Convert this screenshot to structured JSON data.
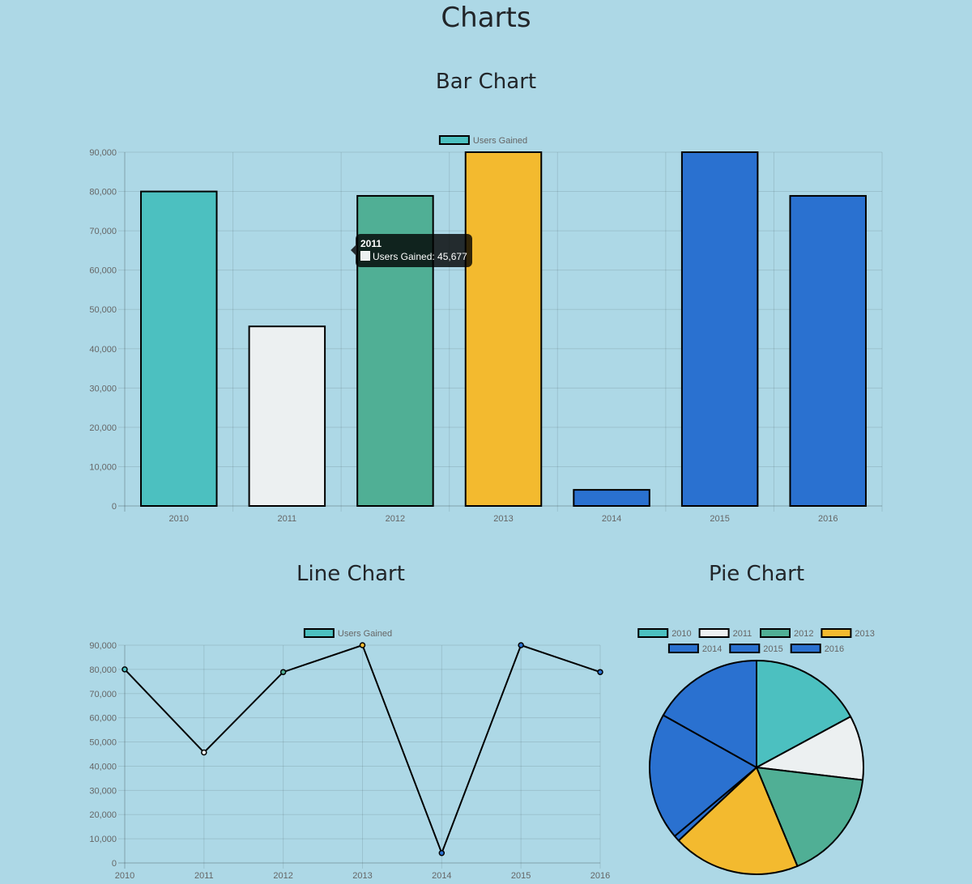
{
  "page": {
    "title": "Charts"
  },
  "sections": {
    "bar_title": "Bar Chart",
    "line_title": "Line Chart",
    "pie_title": "Pie Chart"
  },
  "tooltip": {
    "title": "2011",
    "label": "Users Gained: 45,677"
  },
  "colors": {
    "background": "#add8e6",
    "grid": "rgba(0,0,0,0.1)",
    "tick_text": "#666666",
    "border": "#000000"
  },
  "chart_data": [
    {
      "id": "bar",
      "type": "bar",
      "title": "Bar Chart",
      "legend": [
        "Users Gained"
      ],
      "legend_position": "top",
      "categories": [
        "2010",
        "2011",
        "2012",
        "2013",
        "2014",
        "2015",
        "2016"
      ],
      "series": [
        {
          "name": "Users Gained",
          "values": [
            80000,
            45677,
            78888,
            90000,
            4096,
            90000,
            78888
          ],
          "colors": [
            "#4cc0c0",
            "#ecf0f1",
            "#50af95",
            "#f3ba2f",
            "#2a71d0",
            "#2a71d0",
            "#2a71d0"
          ]
        }
      ],
      "xlabel": "",
      "ylabel": "",
      "ylim": [
        0,
        90000
      ],
      "yticks": [
        "0",
        "10,000",
        "20,000",
        "30,000",
        "40,000",
        "50,000",
        "60,000",
        "70,000",
        "80,000",
        "90,000"
      ],
      "grid": true
    },
    {
      "id": "line",
      "type": "line",
      "title": "Line Chart",
      "legend": [
        "Users Gained"
      ],
      "legend_position": "top",
      "categories": [
        "2010",
        "2011",
        "2012",
        "2013",
        "2014",
        "2015",
        "2016"
      ],
      "series": [
        {
          "name": "Users Gained",
          "values": [
            80000,
            45677,
            78888,
            90000,
            4096,
            90000,
            78888
          ],
          "colors": [
            "#4cc0c0",
            "#ecf0f1",
            "#50af95",
            "#f3ba2f",
            "#2a71d0",
            "#2a71d0",
            "#2a71d0"
          ]
        }
      ],
      "xlabel": "",
      "ylabel": "",
      "ylim": [
        0,
        90000
      ],
      "yticks": [
        "0",
        "10,000",
        "20,000",
        "30,000",
        "40,000",
        "50,000",
        "60,000",
        "70,000",
        "80,000",
        "90,000"
      ],
      "grid": true
    },
    {
      "id": "pie",
      "type": "pie",
      "title": "Pie Chart",
      "legend_position": "top",
      "categories": [
        "2010",
        "2011",
        "2012",
        "2013",
        "2014",
        "2015",
        "2016"
      ],
      "values": [
        80000,
        45677,
        78888,
        90000,
        4096,
        90000,
        78888
      ],
      "colors": [
        "#4cc0c0",
        "#ecf0f1",
        "#50af95",
        "#f3ba2f",
        "#2a71d0",
        "#2a71d0",
        "#2a71d0"
      ]
    }
  ]
}
